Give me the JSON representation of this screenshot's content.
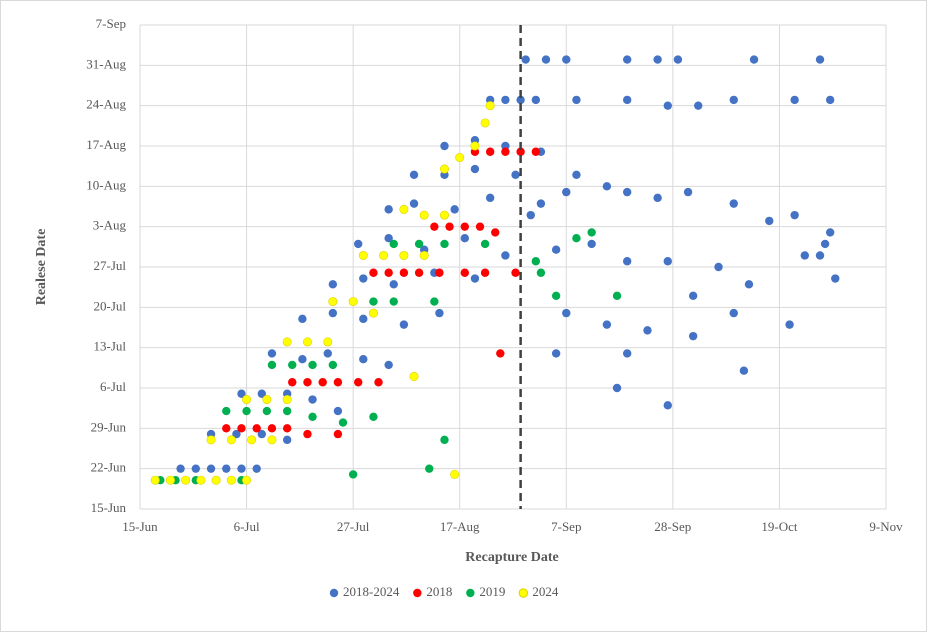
{
  "chart_data": {
    "type": "scatter",
    "x_label": "Recapture Date",
    "y_label": "Realese Date",
    "xlim": [
      166,
      313
    ],
    "ylim": [
      166,
      250
    ],
    "xticks": [
      {
        "value": 166,
        "label": "15-Jun"
      },
      {
        "value": 187,
        "label": "6-Jul"
      },
      {
        "value": 208,
        "label": "27-Jul"
      },
      {
        "value": 229,
        "label": "17-Aug"
      },
      {
        "value": 250,
        "label": "7-Sep"
      },
      {
        "value": 271,
        "label": "28-Sep"
      },
      {
        "value": 292,
        "label": "19-Oct"
      },
      {
        "value": 313,
        "label": "9-Nov"
      }
    ],
    "yticks": [
      {
        "value": 166,
        "label": "15-Jun"
      },
      {
        "value": 173,
        "label": "22-Jun"
      },
      {
        "value": 180,
        "label": "29-Jun"
      },
      {
        "value": 187,
        "label": "6-Jul"
      },
      {
        "value": 194,
        "label": "13-Jul"
      },
      {
        "value": 201,
        "label": "20-Jul"
      },
      {
        "value": 208,
        "label": "27-Jul"
      },
      {
        "value": 215,
        "label": "3-Aug"
      },
      {
        "value": 222,
        "label": "10-Aug"
      },
      {
        "value": 229,
        "label": "17-Aug"
      },
      {
        "value": 236,
        "label": "24-Aug"
      },
      {
        "value": 243,
        "label": "31-Aug"
      },
      {
        "value": 250,
        "label": "7-Sep"
      }
    ],
    "grid": true,
    "vline": 241,
    "legend": "bottom",
    "series": [
      {
        "name": "2018-2024",
        "color": "#4472c4",
        "x": [
          174,
          177,
          180,
          183,
          186,
          189,
          180,
          185,
          190,
          195,
          186,
          190,
          195,
          200,
          205,
          192,
          198,
          203,
          210,
          215,
          198,
          204,
          210,
          218,
          225,
          204,
          210,
          216,
          224,
          232,
          209,
          215,
          222,
          230,
          238,
          215,
          220,
          228,
          235,
          245,
          220,
          226,
          232,
          240,
          252,
          226,
          232,
          238,
          235,
          238,
          241,
          244,
          252,
          262,
          270,
          276,
          283,
          295,
          302,
          242,
          246,
          250,
          262,
          268,
          272,
          287,
          300,
          250,
          258,
          262,
          268,
          274,
          283,
          290,
          295,
          302,
          248,
          255,
          262,
          270,
          280,
          286,
          300,
          250,
          258,
          266,
          275,
          283,
          294,
          303,
          248,
          260,
          270,
          275,
          285,
          297,
          301,
          243,
          245,
          262
        ],
        "y": [
          173,
          173,
          173,
          173,
          173,
          173,
          179,
          179,
          179,
          178,
          186,
          186,
          186,
          185,
          183,
          193,
          192,
          193,
          192,
          191,
          199,
          200,
          199,
          198,
          200,
          205,
          206,
          205,
          207,
          206,
          212,
          213,
          211,
          213,
          210,
          218,
          219,
          218,
          220,
          219,
          224,
          224,
          225,
          224,
          224,
          229,
          230,
          229,
          237,
          237,
          237,
          237,
          237,
          237,
          236,
          236,
          237,
          237,
          237,
          244,
          244,
          244,
          244,
          244,
          244,
          244,
          244,
          221,
          222,
          221,
          220,
          221,
          219,
          216,
          217,
          214,
          211,
          212,
          209,
          209,
          208,
          205,
          210,
          200,
          198,
          197,
          203,
          200,
          198,
          206,
          193,
          187,
          184,
          196,
          190,
          210,
          212,
          217,
          228,
          193
        ]
      },
      {
        "name": "2018",
        "color": "#ff0000",
        "x": [
          183,
          186,
          189,
          192,
          195,
          199,
          205,
          196,
          199,
          202,
          205,
          209,
          213,
          212,
          215,
          218,
          221,
          225,
          230,
          234,
          240,
          224,
          227,
          230,
          233,
          236,
          232,
          235,
          238,
          241,
          244,
          237
        ],
        "y": [
          180,
          180,
          180,
          180,
          180,
          179,
          179,
          188,
          188,
          188,
          188,
          188,
          188,
          207,
          207,
          207,
          207,
          207,
          207,
          207,
          207,
          215,
          215,
          215,
          215,
          214,
          228,
          228,
          228,
          228,
          228,
          193
        ]
      },
      {
        "name": "2019",
        "color": "#00b050",
        "x": [
          170,
          173,
          177,
          181,
          186,
          183,
          187,
          191,
          195,
          200,
          206,
          212,
          192,
          196,
          200,
          204,
          204,
          208,
          212,
          216,
          224,
          216,
          221,
          226,
          234,
          223,
          208,
          226,
          244,
          248,
          255,
          260,
          252,
          245
        ],
        "y": [
          171,
          171,
          171,
          171,
          171,
          183,
          183,
          183,
          183,
          182,
          181,
          182,
          191,
          191,
          191,
          191,
          202,
          202,
          202,
          202,
          202,
          212,
          212,
          212,
          212,
          173,
          172,
          178,
          209,
          203,
          214,
          203,
          213,
          207
        ]
      },
      {
        "name": "2024",
        "color": "#ffff00",
        "x": [
          169,
          172,
          175,
          178,
          181,
          184,
          187,
          180,
          184,
          188,
          192,
          187,
          191,
          195,
          195,
          199,
          203,
          204,
          208,
          212,
          210,
          214,
          218,
          222,
          218,
          222,
          226,
          226,
          229,
          232,
          234,
          235,
          228,
          220
        ],
        "y": [
          171,
          171,
          171,
          171,
          171,
          171,
          171,
          178,
          178,
          178,
          178,
          185,
          185,
          185,
          195,
          195,
          195,
          202,
          202,
          200,
          210,
          210,
          210,
          210,
          218,
          217,
          217,
          225,
          227,
          229,
          233,
          236,
          172,
          189
        ]
      }
    ]
  }
}
